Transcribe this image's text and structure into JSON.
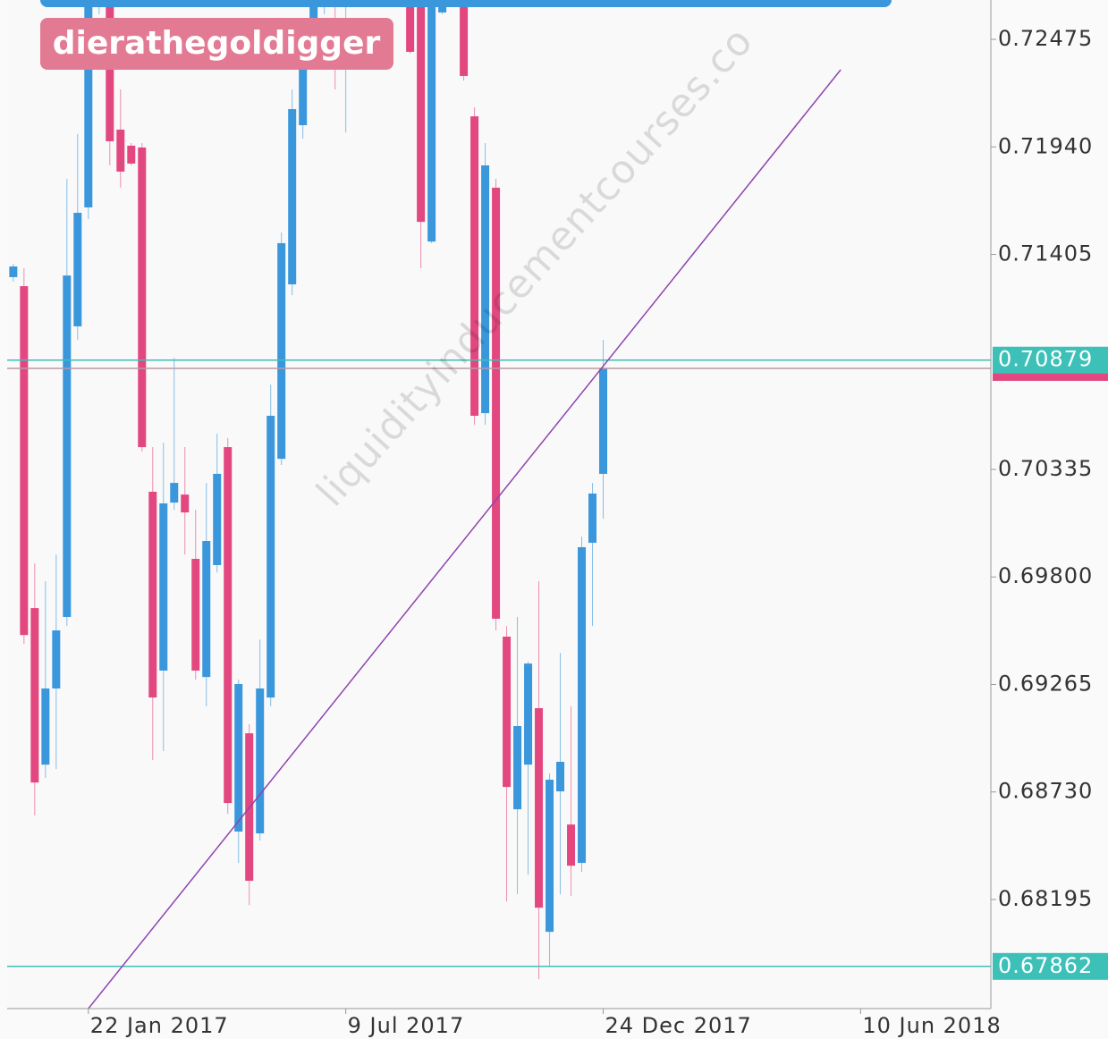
{
  "chart_data": {
    "type": "candlestick",
    "overlay_label": "dierathegoldigger",
    "watermark": "liquidityinducementcourses.co",
    "x": [
      "2016-12-04",
      "2016-12-11",
      "2016-12-18",
      "2016-12-25",
      "2017-01-01",
      "2017-01-08",
      "2017-01-15",
      "2017-01-22",
      "2017-01-29",
      "2017-02-05",
      "2017-02-12",
      "2017-02-19",
      "2017-02-26",
      "2017-03-05",
      "2017-03-12",
      "2017-03-19",
      "2017-03-26",
      "2017-04-02",
      "2017-04-09",
      "2017-04-16",
      "2017-04-23",
      "2017-04-30",
      "2017-05-07",
      "2017-05-14",
      "2017-05-21",
      "2017-05-28",
      "2017-06-04",
      "2017-06-11",
      "2017-06-18",
      "2017-06-25",
      "2017-07-02",
      "2017-07-09",
      "2017-07-16",
      "2017-07-23",
      "2017-07-30",
      "2017-08-06",
      "2017-08-13",
      "2017-08-20",
      "2017-08-27",
      "2017-09-03",
      "2017-09-10",
      "2017-09-17",
      "2017-09-24",
      "2017-10-01",
      "2017-10-08",
      "2017-10-15",
      "2017-10-22",
      "2017-10-29",
      "2017-11-05",
      "2017-11-12",
      "2017-11-19",
      "2017-11-26",
      "2017-12-03",
      "2017-12-10",
      "2017-12-17",
      "2017-12-24"
    ],
    "open": [
      0.71292,
      0.71247,
      0.69645,
      0.68866,
      0.69245,
      0.69601,
      0.71047,
      0.71639,
      0.72716,
      0.72693,
      0.72026,
      0.71946,
      0.71937,
      0.70224,
      0.69334,
      0.7017,
      0.7021,
      0.6989,
      0.69302,
      0.69859,
      0.70446,
      0.68533,
      0.69022,
      0.68524,
      0.692,
      0.70388,
      0.71256,
      0.72048,
      0.72582,
      0.7276,
      0.729,
      0.728,
      0.7295,
      0.731,
      0.73,
      0.729,
      0.728,
      0.72693,
      0.72649,
      0.71469,
      0.72609,
      0.72716,
      0.72693,
      0.72092,
      0.70615,
      0.71737,
      0.69503,
      0.68644,
      0.68866,
      0.69147,
      0.68034,
      0.68733,
      0.68568,
      0.68377,
      0.6997,
      0.70313
    ],
    "high": [
      0.71358,
      0.71336,
      0.69867,
      0.69779,
      0.69912,
      0.71781,
      0.72004,
      0.7276,
      0.7295,
      0.7276,
      0.72226,
      0.71959,
      0.71959,
      0.70446,
      0.70468,
      0.70891,
      0.70446,
      0.70134,
      0.70268,
      0.70513,
      0.70491,
      0.69289,
      0.69067,
      0.69489,
      0.70757,
      0.71514,
      0.72226,
      0.72582,
      0.7276,
      0.73,
      0.731,
      0.7305,
      0.732,
      0.7325,
      0.731,
      0.73,
      0.729,
      0.7276,
      0.72671,
      0.7276,
      0.7276,
      0.729,
      0.7276,
      0.72137,
      0.71959,
      0.71781,
      0.69556,
      0.69601,
      0.69378,
      0.69779,
      0.68822,
      0.69422,
      0.69156,
      0.70001,
      0.70268,
      0.7098
    ],
    "low": [
      0.71269,
      0.69467,
      0.68613,
      0.688,
      0.68844,
      0.69556,
      0.7098,
      0.71581,
      0.726,
      0.71848,
      0.71737,
      0.71848,
      0.70424,
      0.68889,
      0.68933,
      0.70134,
      0.69912,
      0.69289,
      0.69156,
      0.69823,
      0.68621,
      0.68377,
      0.68167,
      0.68488,
      0.69156,
      0.70357,
      0.71202,
      0.71981,
      0.72538,
      0.726,
      0.72226,
      0.72012,
      0.727,
      0.728,
      0.7275,
      0.727,
      0.7265,
      0.72404,
      0.71336,
      0.71461,
      0.726,
      0.7268,
      0.7227,
      0.70557,
      0.70557,
      0.69534,
      0.68185,
      0.68221,
      0.68319,
      0.67798,
      0.67865,
      0.68221,
      0.68212,
      0.68332,
      0.69556,
      0.7009
    ],
    "close": [
      0.71345,
      0.69511,
      0.68777,
      0.69245,
      0.69534,
      0.713,
      0.71612,
      0.72716,
      0.7285,
      0.71968,
      0.71817,
      0.71857,
      0.70446,
      0.692,
      0.70166,
      0.70268,
      0.70121,
      0.69334,
      0.69979,
      0.70313,
      0.68675,
      0.69267,
      0.68288,
      0.69245,
      0.70602,
      0.71461,
      0.72128,
      0.72337,
      0.72716,
      0.729,
      0.728,
      0.7295,
      0.731,
      0.73,
      0.729,
      0.728,
      0.72693,
      0.72413,
      0.71567,
      0.72693,
      0.72716,
      0.728,
      0.72293,
      0.70602,
      0.71848,
      0.69592,
      0.68755,
      0.69058,
      0.69369,
      0.68154,
      0.68791,
      0.6888,
      0.68363,
      0.69948,
      0.70215,
      0.70838
    ],
    "up_color": "#3a97dc",
    "down_color": "#e2487f",
    "xlim": [
      "2016-11-30",
      "2018-09-03"
    ],
    "xticks": [
      {
        "value": "2017-01-22",
        "label": "22 Jan 2017"
      },
      {
        "value": "2017-07-09",
        "label": "9 Jul 2017"
      },
      {
        "value": "2017-12-24",
        "label": "24 Dec 2017"
      },
      {
        "value": "2018-06-10",
        "label": "10 Jun 2018"
      }
    ],
    "ylim": [
      0.67652,
      0.72671
    ],
    "yticks": [
      0.72475,
      {
        "value": 0.7194,
        "label": "0.71940"
      },
      0.71405,
      0.70335,
      {
        "value": 0.698,
        "label": "0.69800"
      },
      0.69265,
      {
        "value": 0.6873,
        "label": "0.68730"
      },
      0.68195
    ],
    "lines": [
      {
        "value": 0.70879,
        "color": "#3cc0b8"
      },
      {
        "value": 0.67862,
        "color": "#3cc0b8"
      }
    ],
    "price_line_color": "#b89aa6",
    "trendline": {
      "x": [
        "2017-01-22",
        "2018-05-28"
      ],
      "y": [
        0.67652,
        0.72324
      ],
      "color": "#8e44ad"
    }
  }
}
